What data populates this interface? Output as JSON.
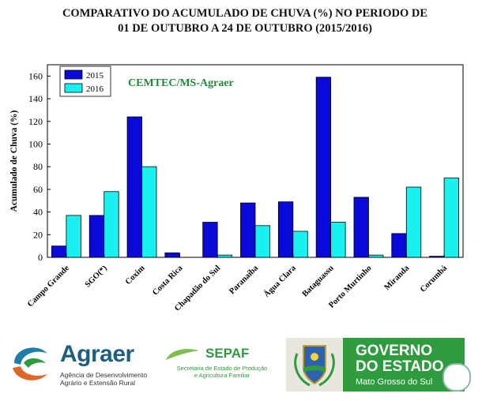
{
  "chart_data": {
    "type": "bar",
    "title": "COMPARATIVO DO ACUMULADO DE CHUVA (%) NO PERIODO DE 01 DE OUTUBRO A  24 DE OUTUBRO (2015/2016)",
    "title_line1": "COMPARATIVO DO ACUMULADO DE CHUVA (%) NO PERIODO DE",
    "title_line2": "01 DE OUTUBRO A  24 DE OUTUBRO (2015/2016)",
    "annotation": "CEMTEC/MS-Agraer",
    "ylabel": "Acumulado de Chuva (%)",
    "xlabel": "",
    "ylim": [
      0,
      170
    ],
    "yticks": [
      "0",
      "20",
      "40",
      "60",
      "80",
      "100",
      "120",
      "140",
      "160"
    ],
    "legend_position": "top-left",
    "categories": [
      "Campo Grande",
      "SGO(*)",
      "Coxim",
      "Costa Rica",
      "Chapadão do Sul",
      "Paranaíba",
      "Água Clara",
      "Bataguassu",
      "Porto Murtinho",
      "Miranda",
      "Corumbá"
    ],
    "series": [
      {
        "name": "2015",
        "color": "#0a0ad8",
        "values": [
          10,
          37,
          124,
          4,
          31,
          48,
          49,
          159,
          53,
          21,
          1
        ]
      },
      {
        "name": "2016",
        "color": "#19f0f0",
        "values": [
          37,
          58,
          80,
          0,
          2,
          28,
          23,
          31,
          2,
          62,
          70
        ]
      }
    ]
  },
  "footer": {
    "agraer_name": "Agraer",
    "agraer_sub": "Agência de Desenvolvimento\nAgrário e Extensão Rural",
    "sepaf_name": "SEPAF",
    "sepaf_sub": "Secretaria de Estado de Produção\ne Agricultura Familiar",
    "gov_line1": "GOVERNO",
    "gov_line2": "DO ESTADO",
    "gov_line3": "Mato Grosso do Sul"
  }
}
